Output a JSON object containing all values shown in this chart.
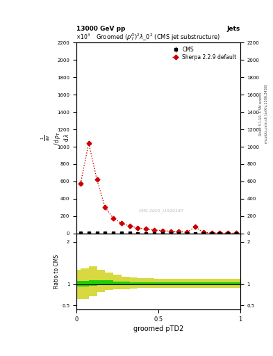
{
  "title": "Groomed $(p_T^D)^2\\lambda\\_0^2$ (CMS jet substructure)",
  "header_left": "13000 GeV pp",
  "header_right": "Jets",
  "watermark": "CMS-2021_I1920187",
  "right_label": "Rivet 3.1.10, 3.5M events",
  "right_label2": "mcplots.cern.ch [arXiv:1306.3436]",
  "xlabel": "groomed pTD2",
  "ratio_ylabel": "Ratio to CMS",
  "xlim": [
    0,
    1
  ],
  "ylim": [
    0,
    2200
  ],
  "yticks": [
    0,
    200,
    400,
    600,
    800,
    1000,
    1200,
    1400,
    1600,
    1800,
    2000,
    2200
  ],
  "cms_x": [
    0.025,
    0.075,
    0.125,
    0.175,
    0.225,
    0.275,
    0.325,
    0.375,
    0.425,
    0.475,
    0.525,
    0.575,
    0.625,
    0.675,
    0.725,
    0.775,
    0.825,
    0.875,
    0.925,
    0.975
  ],
  "cms_y": [
    5,
    4,
    3,
    3,
    2,
    2,
    2,
    1,
    1,
    1,
    1,
    1,
    1,
    1,
    1,
    1,
    0,
    0,
    0,
    0
  ],
  "cms_yerr": [
    2,
    2,
    1,
    1,
    1,
    1,
    1,
    1,
    1,
    1,
    1,
    1,
    1,
    1,
    1,
    1,
    0,
    0,
    0,
    0
  ],
  "sherpa_x": [
    0.025,
    0.075,
    0.125,
    0.175,
    0.225,
    0.275,
    0.325,
    0.375,
    0.425,
    0.475,
    0.525,
    0.575,
    0.625,
    0.675,
    0.725,
    0.775,
    0.825,
    0.875,
    0.925,
    0.975
  ],
  "sherpa_y": [
    575,
    1040,
    620,
    300,
    175,
    120,
    85,
    65,
    50,
    40,
    32,
    25,
    20,
    16,
    75,
    10,
    8,
    5,
    3,
    2
  ],
  "sherpa_color": "#cc0000",
  "cms_color": "#000000",
  "ratio_xlim": [
    0,
    1
  ],
  "ratio_ylim": [
    0.4,
    2.2
  ],
  "ratio_yticks": [
    0.5,
    1.0,
    2.0
  ],
  "ratio_line_y": 1.0,
  "green_band_x": [
    0.0,
    0.025,
    0.075,
    0.125,
    0.175,
    0.225,
    0.275,
    0.325,
    0.375,
    0.425,
    0.475,
    0.525,
    0.575,
    0.625,
    0.675,
    0.725,
    0.775,
    0.825,
    0.875,
    0.925,
    0.975,
    1.0
  ],
  "green_band_lo": [
    0.95,
    0.95,
    0.97,
    0.98,
    0.98,
    0.98,
    0.98,
    0.99,
    0.99,
    0.99,
    0.99,
    0.99,
    0.99,
    0.99,
    0.99,
    0.99,
    0.99,
    0.99,
    0.99,
    0.99,
    0.99,
    0.99
  ],
  "green_band_hi": [
    1.08,
    1.08,
    1.1,
    1.1,
    1.09,
    1.07,
    1.06,
    1.05,
    1.05,
    1.04,
    1.04,
    1.04,
    1.04,
    1.04,
    1.04,
    1.04,
    1.04,
    1.04,
    1.04,
    1.04,
    1.04,
    1.04
  ],
  "yellow_band_x": [
    0.0,
    0.025,
    0.075,
    0.125,
    0.175,
    0.225,
    0.275,
    0.325,
    0.375,
    0.425,
    0.475,
    0.525,
    0.575,
    0.625,
    0.675,
    0.725,
    0.775,
    0.825,
    0.875,
    0.925,
    0.975,
    1.0
  ],
  "yellow_band_lo": [
    0.65,
    0.65,
    0.72,
    0.82,
    0.86,
    0.88,
    0.89,
    0.9,
    0.91,
    0.91,
    0.92,
    0.92,
    0.92,
    0.92,
    0.92,
    0.92,
    0.92,
    0.92,
    0.92,
    0.92,
    0.92,
    0.92
  ],
  "yellow_band_hi": [
    1.35,
    1.38,
    1.42,
    1.35,
    1.28,
    1.22,
    1.18,
    1.16,
    1.15,
    1.14,
    1.13,
    1.13,
    1.13,
    1.13,
    1.13,
    1.13,
    1.13,
    1.13,
    1.13,
    1.13,
    1.13,
    1.13
  ],
  "green_color": "#00cc00",
  "yellow_color": "#cccc00",
  "background_color": "#ffffff"
}
